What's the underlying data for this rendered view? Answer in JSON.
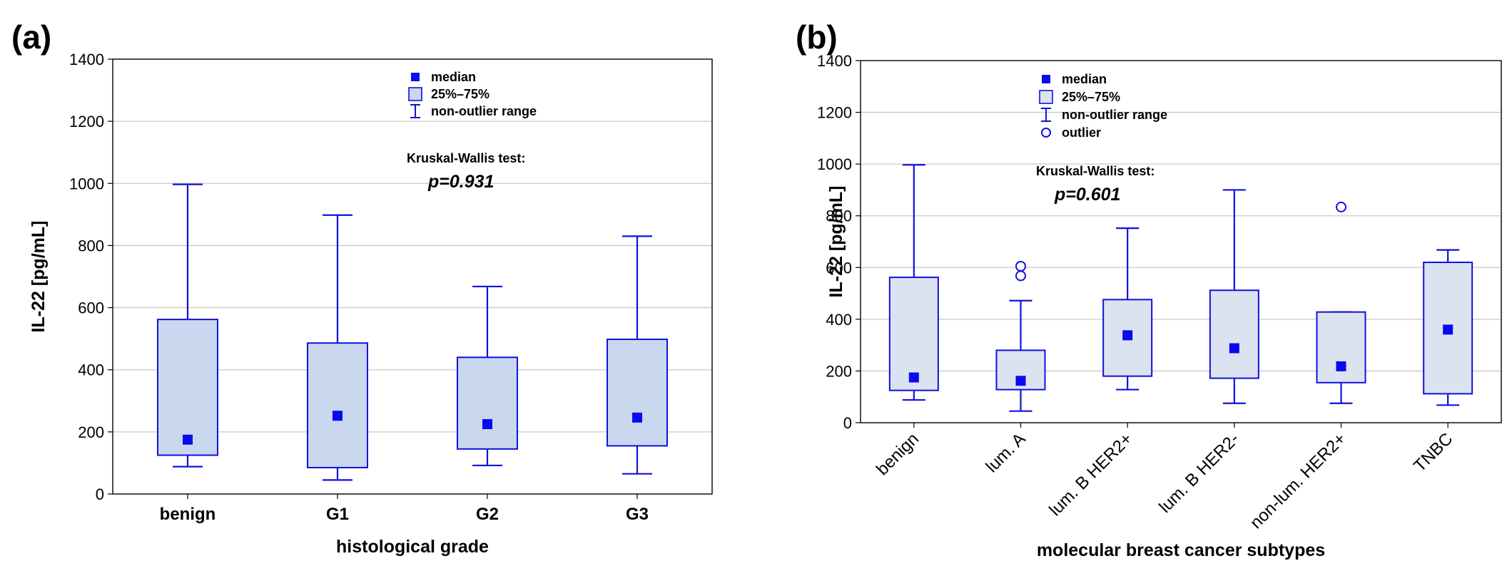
{
  "chart_data": [
    {
      "type": "box",
      "panel_label": "(a)",
      "ylabel": "IL-22 [pg/mL]",
      "xlabel": "histological grade",
      "ylim": [
        0,
        1400
      ],
      "yticks": [
        0,
        200,
        400,
        600,
        800,
        1000,
        1200,
        1400
      ],
      "grid": true,
      "categories": [
        "benign",
        "G1",
        "G2",
        "G3"
      ],
      "boxes": [
        {
          "min": 88,
          "q1": 125,
          "median": 175,
          "q3": 562,
          "max": 997
        },
        {
          "min": 45,
          "q1": 85,
          "median": 252,
          "q3": 486,
          "max": 898
        },
        {
          "min": 92,
          "q1": 145,
          "median": 225,
          "q3": 440,
          "max": 668
        },
        {
          "min": 65,
          "q1": 155,
          "median": 246,
          "q3": 498,
          "max": 830
        }
      ],
      "outliers": [
        [],
        [],
        [],
        []
      ],
      "legend": {
        "items": [
          "median",
          "25%–75%",
          "non-outlier range"
        ]
      },
      "test_label": "Kruskal-Wallis test:",
      "p_value": "p=0.931"
    },
    {
      "type": "box",
      "panel_label": "(b)",
      "ylabel": "IL-22 [pg/mL]",
      "xlabel": "molecular breast cancer subtypes",
      "ylim": [
        0,
        1400
      ],
      "yticks": [
        0,
        200,
        400,
        600,
        800,
        1000,
        1200,
        1400
      ],
      "grid": true,
      "categories": [
        "benign",
        "lum. A",
        "lum. B HER2+",
        "lum. B HER2-",
        "non-lum. HER2+",
        "TNBC"
      ],
      "boxes": [
        {
          "min": 88,
          "q1": 125,
          "median": 175,
          "q3": 562,
          "max": 997
        },
        {
          "min": 45,
          "q1": 128,
          "median": 162,
          "q3": 280,
          "max": 472
        },
        {
          "min": 128,
          "q1": 180,
          "median": 338,
          "q3": 476,
          "max": 752
        },
        {
          "min": 75,
          "q1": 172,
          "median": 288,
          "q3": 512,
          "max": 900
        },
        {
          "min": 75,
          "q1": 155,
          "median": 218,
          "q3": 428,
          "max": 428
        },
        {
          "min": 68,
          "q1": 112,
          "median": 360,
          "q3": 620,
          "max": 668
        }
      ],
      "outliers": [
        [],
        [
          568,
          605
        ],
        [],
        [],
        [
          834
        ],
        []
      ],
      "legend": {
        "items": [
          "median",
          "25%–75%",
          "non-outlier range",
          "outlier"
        ]
      },
      "test_label": "Kruskal-Wallis test:",
      "p_value": "p=0.601"
    }
  ],
  "colors": {
    "line": "#1111dd",
    "box_fill_a": "#c9d8ef",
    "box_fill_b": "#dbe3f1",
    "median": "#0a0af0",
    "grid": "#c8c8c8"
  }
}
